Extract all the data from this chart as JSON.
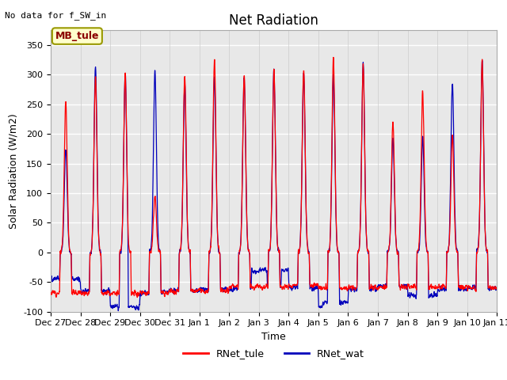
{
  "title": "Net Radiation",
  "xlabel": "Time",
  "ylabel": "Solar Radiation (W/m2)",
  "top_left_text": "No data for f_SW_in",
  "legend_box_text": "MB_tule",
  "ylim": [
    -100,
    375
  ],
  "yticks": [
    -100,
    -50,
    0,
    50,
    100,
    150,
    200,
    250,
    300,
    350
  ],
  "xtick_labels": [
    "Dec 27",
    "Dec 28",
    "Dec 29",
    "Dec 30",
    "Dec 31",
    "Jan 1",
    "Jan 2",
    "Jan 3",
    "Jan 4",
    "Jan 5",
    "Jan 6",
    "Jan 7",
    "Jan 8",
    "Jan 9",
    "Jan 10",
    "Jan 11"
  ],
  "color_red": "#ff0000",
  "color_blue": "#0000bb",
  "legend_label_red": "RNet_tule",
  "legend_label_blue": "RNet_wat",
  "background_color": "#e8e8e8",
  "grid_color": "#ffffff",
  "title_fontsize": 12,
  "axis_label_fontsize": 9,
  "tick_fontsize": 8,
  "tule_peaks": [
    255,
    300,
    305,
    95,
    300,
    325,
    300,
    310,
    315,
    330,
    320,
    225,
    275,
    200,
    325
  ],
  "wat_peaks": [
    175,
    318,
    305,
    308,
    285,
    300,
    300,
    310,
    305,
    300,
    320,
    195,
    195,
    290,
    325
  ],
  "tule_night": [
    -68,
    -68,
    -70,
    -68,
    -65,
    -65,
    -58,
    -58,
    -55,
    -60,
    -60,
    -58,
    -58,
    -58,
    -60
  ],
  "wat_night": [
    -45,
    -65,
    -92,
    -68,
    -65,
    -62,
    -62,
    -55,
    -60,
    -85,
    -62,
    -58,
    -72,
    -62,
    -60
  ],
  "n_days": 15
}
